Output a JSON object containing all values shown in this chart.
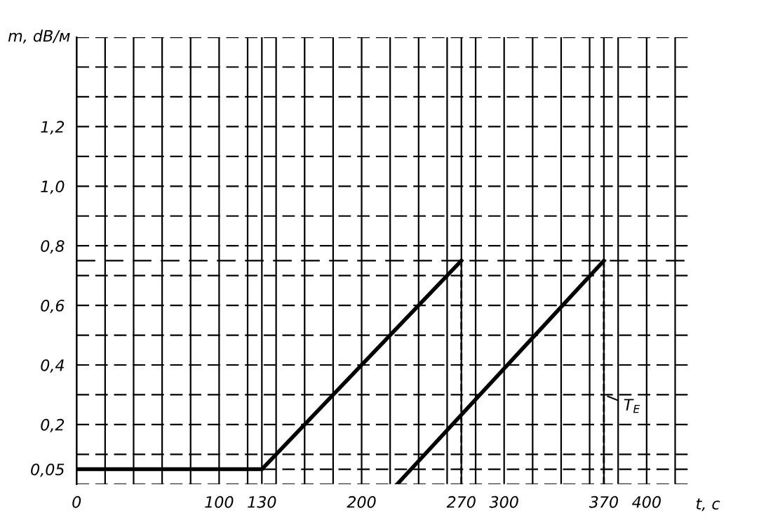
{
  "chart_data": {
    "type": "line",
    "xlabel": "t, c",
    "ylabel": "m, dB/м",
    "xlim": [
      0,
      430
    ],
    "ylim": [
      0,
      1.5
    ],
    "xticks": [
      0,
      {
        "value": 20,
        "label": null
      },
      {
        "value": 40,
        "label": null
      },
      {
        "value": 60,
        "label": null
      },
      {
        "value": 80,
        "label": null
      },
      100,
      {
        "value": 120,
        "label": null
      },
      130,
      {
        "value": 140,
        "label": null
      },
      {
        "value": 160,
        "label": null
      },
      {
        "value": 180,
        "label": null
      },
      200,
      {
        "value": 220,
        "label": null
      },
      {
        "value": 240,
        "label": null
      },
      {
        "value": 260,
        "label": null
      },
      270,
      {
        "value": 280,
        "label": null
      },
      300,
      {
        "value": 320,
        "label": null
      },
      {
        "value": 340,
        "label": null
      },
      {
        "value": 360,
        "label": null
      },
      370,
      {
        "value": 380,
        "label": null
      },
      400,
      {
        "value": 420,
        "label": null
      }
    ],
    "yticks": [
      {
        "value": 0,
        "label": null
      },
      {
        "value": 0.05,
        "label": "0,05"
      },
      {
        "value": 0.1,
        "label": null
      },
      {
        "value": 0.2,
        "label": "0,2"
      },
      {
        "value": 0.3,
        "label": null
      },
      {
        "value": 0.4,
        "label": "0,4"
      },
      {
        "value": 0.5,
        "label": null
      },
      {
        "value": 0.6,
        "label": "0,6"
      },
      {
        "value": 0.7,
        "label": null
      },
      {
        "value": 0.8,
        "label": "0,8"
      },
      {
        "value": 0.9,
        "label": null
      },
      {
        "value": 1.0,
        "label": "1,0"
      },
      {
        "value": 1.1,
        "label": null
      },
      {
        "value": 1.2,
        "label": "1,2"
      },
      {
        "value": 1.3,
        "label": null
      },
      {
        "value": 1.4,
        "label": null
      },
      {
        "value": 1.5,
        "label": null
      }
    ],
    "grid": true,
    "ref_lines": [
      {
        "axis": "y",
        "value": 0.75,
        "label": null,
        "color": "#000000",
        "line_style": "dashed"
      }
    ],
    "series": [
      {
        "color": "#000000",
        "x": [
          0,
          130,
          270
        ],
        "values": [
          0.05,
          0.05,
          0.75
        ],
        "line_style": "solid"
      },
      {
        "color": "#000000",
        "x": [
          225,
          370
        ],
        "values": [
          0,
          0.75
        ],
        "line_style": "solid"
      },
      {
        "color": "#000000",
        "x": [
          270,
          270
        ],
        "values": [
          0,
          0.75
        ],
        "line_style": "dashed"
      },
      {
        "color": "#000000",
        "x": [
          370,
          370
        ],
        "values": [
          0,
          0.75
        ],
        "line_style": "dashed"
      }
    ],
    "annotations": [
      {
        "text": "T$_{E}$",
        "x": 370,
        "y": 0.3
      }
    ]
  }
}
